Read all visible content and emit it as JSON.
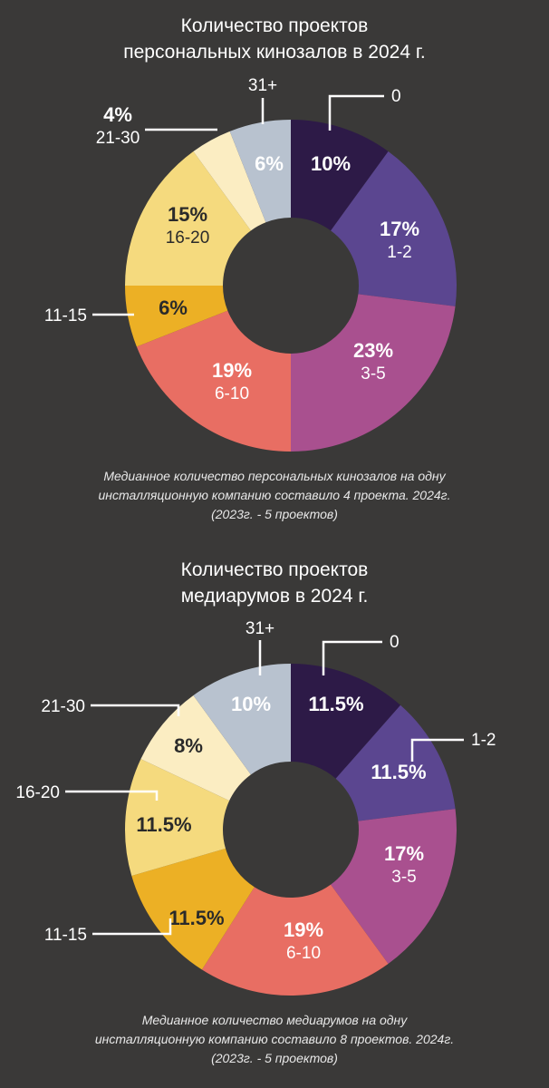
{
  "charts": [
    {
      "title_lines": [
        "Количество проектов",
        "персональных кинозалов в 2024 г."
      ],
      "caption_lines": [
        "Медианное количество персональных кинозалов на одну",
        "инсталляционную компанию составило 4 проекта. 2024г.",
        "(2023г. - 5 проектов)"
      ]
    },
    {
      "title_lines": [
        "Количество проектов",
        "медиарумов в 2024 г."
      ],
      "caption_lines": [
        "Медианное количество медиарумов на одну",
        "инсталляционную компанию составило 8 проектов. 2024г.",
        "(2023г. - 5 проектов)"
      ]
    }
  ],
  "chart_data": [
    {
      "type": "pie",
      "title": "Количество проектов персональных кинозалов в 2024 г.",
      "categories": [
        "0",
        "1-2",
        "3-5",
        "6-10",
        "11-15",
        "16-20",
        "21-30",
        "31+"
      ],
      "values": [
        10,
        17,
        23,
        19,
        6,
        15,
        4,
        6
      ],
      "value_labels": [
        "10%",
        "17%",
        "23%",
        "19%",
        "6%",
        "15%",
        "4%",
        "6%"
      ],
      "colors": [
        "#2d1a47",
        "#5b4690",
        "#a9508f",
        "#e86e63",
        "#ecb025",
        "#f5da7e",
        "#fbedc2",
        "#b8c2cf"
      ],
      "label_colors": [
        "#ffffff",
        "#ffffff",
        "#ffffff",
        "#ffffff",
        "#2a2a2a",
        "#2a2a2a",
        "#ffffff",
        "#ffffff"
      ]
    },
    {
      "type": "pie",
      "title": "Количество проектов медиарумов в 2024 г.",
      "categories": [
        "0",
        "1-2",
        "3-5",
        "6-10",
        "11-15",
        "16-20",
        "21-30",
        "31+"
      ],
      "values": [
        11.5,
        11.5,
        17,
        19,
        11.5,
        11.5,
        8,
        10
      ],
      "value_labels": [
        "11.5%",
        "11.5%",
        "17%",
        "19%",
        "11.5%",
        "11.5%",
        "8%",
        "10%"
      ],
      "colors": [
        "#2d1a47",
        "#5b4690",
        "#a9508f",
        "#e86e63",
        "#ecb025",
        "#f5da7e",
        "#fbedc2",
        "#b8c2cf"
      ],
      "label_colors": [
        "#ffffff",
        "#ffffff",
        "#ffffff",
        "#ffffff",
        "#2a2a2a",
        "#2a2a2a",
        "#2a2a2a",
        "#ffffff"
      ]
    }
  ]
}
